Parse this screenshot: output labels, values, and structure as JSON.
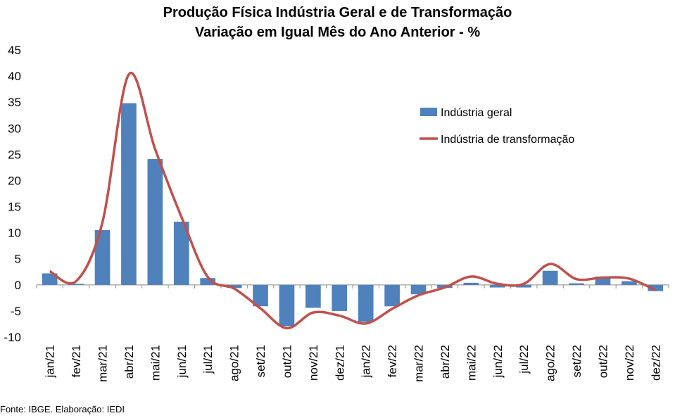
{
  "chart_data": {
    "type": "bar",
    "title": "Produção Física Indústria Geral e de Transformação",
    "subtitle": "Variação em Igual Mês do Ano Anterior - %",
    "categories": [
      "jan/21",
      "fev/21",
      "mar/21",
      "abr/21",
      "mai/21",
      "jun/21",
      "jul/21",
      "ago/21",
      "set/21",
      "out/21",
      "nov/21",
      "dez/21",
      "jan/22",
      "fev/22",
      "mar/22",
      "abr/22",
      "mai/22",
      "jun/22",
      "jul/22",
      "ago/22",
      "set/22",
      "out/22",
      "nov/22",
      "dez/22"
    ],
    "ylim": [
      -10,
      45
    ],
    "yticks": [
      -10,
      -5,
      0,
      5,
      10,
      15,
      20,
      25,
      30,
      35,
      40,
      45
    ],
    "grid": false,
    "legend_position": "right",
    "series": [
      {
        "name": "Indústria geral",
        "type": "bar",
        "color": "#4F81BD",
        "values": [
          2.2,
          0.2,
          10.5,
          34.8,
          24.1,
          12.1,
          1.3,
          -0.6,
          -4.1,
          -7.9,
          -4.4,
          -5.0,
          -7.1,
          -4.1,
          -1.8,
          -0.6,
          0.4,
          -0.5,
          -0.5,
          2.7,
          0.3,
          1.6,
          0.7,
          -1.2
        ]
      },
      {
        "name": "Indústria de transformação",
        "type": "line",
        "color": "#C0504D",
        "values": [
          2.6,
          0.7,
          12.0,
          40.3,
          26.0,
          13.0,
          1.5,
          -0.7,
          -4.5,
          -8.3,
          -5.3,
          -5.9,
          -7.4,
          -4.6,
          -2.0,
          -0.5,
          1.6,
          0.2,
          0.2,
          4.0,
          1.1,
          1.4,
          1.2,
          -1.0
        ]
      }
    ]
  },
  "footer": {
    "source": "Fonte: IBGE. Elaboração: IEDI"
  }
}
